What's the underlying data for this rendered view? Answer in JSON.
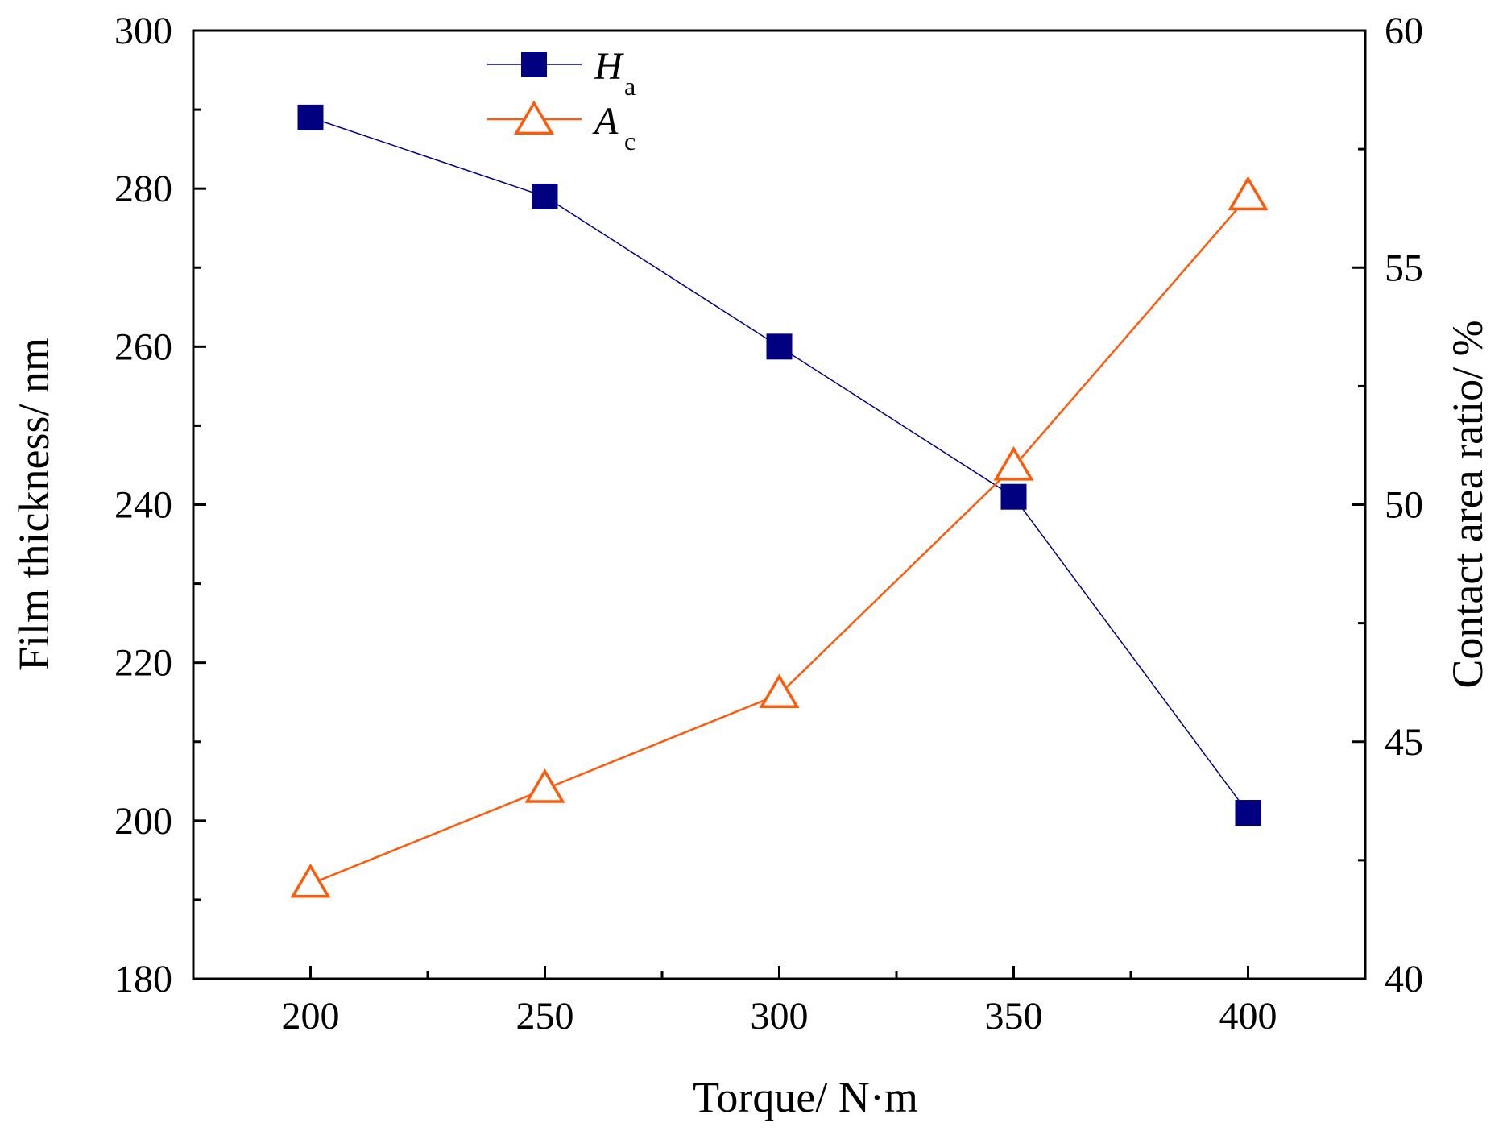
{
  "chart_data": {
    "type": "line",
    "title": "",
    "xlabel": "Torque/ N·m",
    "ylabel": "Film thickness/ nm",
    "y2label": "Contact area ratio/ %",
    "x": [
      200,
      250,
      300,
      350,
      400
    ],
    "xlim": [
      175,
      425
    ],
    "ylim": [
      180,
      300
    ],
    "y2lim": [
      40,
      60
    ],
    "x_ticks": [
      200,
      250,
      300,
      350,
      400
    ],
    "y_ticks": [
      180,
      200,
      220,
      240,
      260,
      280,
      300
    ],
    "y2_ticks": [
      40,
      45,
      50,
      55,
      60
    ],
    "grid": false,
    "legend_position": "top-left",
    "series": [
      {
        "name": "H",
        "subscript": "a",
        "axis": "left",
        "marker": "square-filled",
        "color": "#000080",
        "values": [
          289,
          279,
          260,
          241,
          201
        ]
      },
      {
        "name": "A",
        "subscript": "c",
        "axis": "right",
        "marker": "triangle-open",
        "color": "#FF5A0A",
        "values": [
          42,
          44,
          46,
          50.8,
          56.5
        ]
      }
    ]
  }
}
